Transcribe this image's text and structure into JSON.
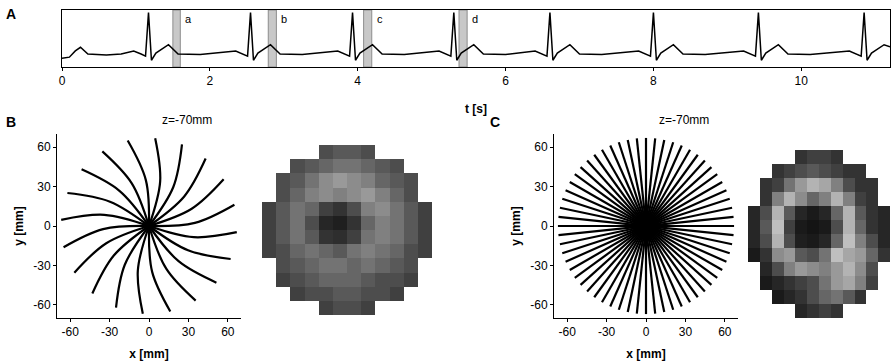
{
  "chart_data": [
    {
      "panel": "A",
      "type": "line",
      "color": "#000000",
      "tick_labels": "x",
      "x_label": "t [s]",
      "xlim": [
        0,
        11.2
      ],
      "xticks": [
        0,
        2,
        4,
        6,
        8,
        10
      ],
      "ylim": [
        -0.05,
        1.05
      ],
      "x": [
        0,
        0.1,
        0.18,
        0.25,
        0.35,
        0.6,
        0.8,
        0.97,
        1.07,
        1.13,
        1.17,
        1.21,
        1.27,
        1.44,
        1.57,
        1.87,
        2.35,
        2.45,
        2.51,
        2.55,
        2.59,
        2.65,
        2.82,
        2.95,
        3.25,
        3.73,
        3.83,
        3.89,
        3.93,
        3.97,
        4.03,
        4.2,
        4.33,
        4.63,
        5.1,
        5.2,
        5.26,
        5.3,
        5.34,
        5.4,
        5.57,
        5.7,
        6.0,
        6.4,
        6.5,
        6.56,
        6.6,
        6.64,
        6.7,
        6.87,
        7.0,
        7.3,
        7.8,
        7.9,
        7.96,
        8.0,
        8.04,
        8.1,
        8.27,
        8.4,
        8.7,
        9.22,
        9.32,
        9.38,
        9.42,
        9.46,
        9.52,
        9.69,
        9.82,
        10.12,
        10.65,
        10.75,
        10.81,
        10.85,
        10.89,
        10.95,
        11.12,
        11.2
      ],
      "values": [
        0.12,
        0.14,
        0.26,
        0.33,
        0.2,
        0.18,
        0.2,
        0.26,
        0.2,
        0.16,
        1.0,
        0.08,
        0.22,
        0.38,
        0.2,
        0.19,
        0.26,
        0.2,
        0.16,
        1.0,
        0.08,
        0.22,
        0.38,
        0.2,
        0.19,
        0.26,
        0.2,
        0.16,
        1.0,
        0.08,
        0.22,
        0.38,
        0.2,
        0.19,
        0.26,
        0.2,
        0.16,
        1.0,
        0.08,
        0.22,
        0.38,
        0.2,
        0.19,
        0.26,
        0.2,
        0.16,
        1.0,
        0.08,
        0.22,
        0.38,
        0.2,
        0.19,
        0.26,
        0.2,
        0.16,
        1.0,
        0.08,
        0.22,
        0.38,
        0.2,
        0.19,
        0.26,
        0.2,
        0.16,
        1.0,
        0.08,
        0.22,
        0.38,
        0.2,
        0.19,
        0.26,
        0.2,
        0.16,
        1.0,
        0.08,
        0.22,
        0.38,
        0.34
      ],
      "windows": [
        {
          "label": "a",
          "x0": 1.5,
          "x1": 1.6
        },
        {
          "label": "b",
          "x0": 2.79,
          "x1": 2.9
        },
        {
          "label": "c",
          "x0": 4.08,
          "x1": 4.19
        },
        {
          "label": "d",
          "x0": 5.37,
          "x1": 5.48
        }
      ]
    },
    {
      "panel": "B",
      "type": "line",
      "title": "z=-70mm",
      "color": "#000000",
      "line_style": "curved",
      "x_label": "x [mm]",
      "y_label": "y [mm]",
      "xlim": [
        -70,
        70
      ],
      "xticks": [
        -60,
        -30,
        0,
        30,
        60
      ],
      "ylim": [
        -70,
        70
      ],
      "yticks": [
        -60,
        -30,
        0,
        30,
        60
      ],
      "x": [
        0,
        34.9,
        65.0,
        null,
        0,
        32.5,
        56.8,
        null,
        0,
        26.8,
        43.1,
        null,
        0,
        18.5,
        25.1,
        null,
        0,
        8.5,
        4.7,
        null,
        0,
        -2.4,
        -16.2,
        null,
        0,
        -13.1,
        -35.5,
        null,
        0,
        -22.5,
        -51.3,
        null,
        0,
        -29.7,
        -62.1,
        null,
        0,
        -34,
        -66.8,
        null,
        0,
        -34.9,
        -65.0,
        null,
        0,
        -32.5,
        -56.8,
        null,
        0,
        -26.8,
        -43.1,
        null,
        0,
        -18.5,
        -25.1,
        null,
        0,
        -8.5,
        -4.7,
        null,
        0,
        2.4,
        16.2,
        null,
        0,
        13.1,
        35.5,
        null,
        0,
        22.5,
        51.3,
        null,
        0,
        29.7,
        62.1,
        null,
        0,
        34,
        66.8
      ],
      "y": [
        0,
        2.4,
        16.2,
        null,
        0,
        13.1,
        35.5,
        null,
        0,
        22.5,
        51.3,
        null,
        0,
        29.7,
        62.1,
        null,
        0,
        34,
        66.8,
        null,
        0,
        34.9,
        65.0,
        null,
        0,
        32.5,
        56.8,
        null,
        0,
        26.8,
        43.1,
        null,
        0,
        18.5,
        25.1,
        null,
        0,
        8.5,
        4.7,
        null,
        0,
        -2.4,
        -16.2,
        null,
        0,
        -13.1,
        -35.5,
        null,
        0,
        -22.5,
        -51.3,
        null,
        0,
        -29.7,
        -62.1,
        null,
        0,
        -34,
        -66.8,
        null,
        0,
        -34.9,
        -65.0,
        null,
        0,
        -32.5,
        -56.8,
        null,
        0,
        -26.8,
        -43.1,
        null,
        0,
        -18.5,
        -25.1,
        null,
        0,
        -8.5,
        -4.7
      ]
    },
    {
      "type": "heatmap",
      "tick_labels": false,
      "zlim": [
        0,
        1
      ],
      "cells": [
        [
          null,
          null,
          null,
          null,
          0.3,
          0.35,
          0.35,
          0.3,
          null,
          null,
          null,
          null
        ],
        [
          null,
          null,
          0.3,
          0.35,
          0.4,
          0.45,
          0.45,
          0.4,
          0.35,
          0.3,
          null,
          null
        ],
        [
          null,
          0.3,
          0.35,
          0.45,
          0.55,
          0.6,
          0.55,
          0.5,
          0.4,
          0.35,
          0.3,
          null
        ],
        [
          null,
          0.3,
          0.4,
          0.5,
          0.55,
          0.5,
          0.55,
          0.6,
          0.5,
          0.4,
          0.3,
          null
        ],
        [
          0.25,
          0.35,
          0.45,
          0.4,
          0.25,
          0.2,
          0.3,
          0.5,
          0.55,
          0.45,
          0.35,
          0.25
        ],
        [
          0.25,
          0.35,
          0.45,
          0.3,
          0.15,
          0.12,
          0.2,
          0.4,
          0.5,
          0.45,
          0.35,
          0.25
        ],
        [
          0.25,
          0.35,
          0.45,
          0.35,
          0.2,
          0.18,
          0.25,
          0.45,
          0.5,
          0.45,
          0.35,
          0.25
        ],
        [
          0.25,
          0.3,
          0.4,
          0.45,
          0.4,
          0.35,
          0.45,
          0.5,
          0.45,
          0.4,
          0.3,
          0.25
        ],
        [
          null,
          0.3,
          0.35,
          0.4,
          0.45,
          0.45,
          0.4,
          0.45,
          0.4,
          0.35,
          0.3,
          null
        ],
        [
          null,
          0.25,
          0.3,
          0.35,
          0.4,
          0.4,
          0.4,
          0.35,
          0.3,
          0.3,
          0.25,
          null
        ],
        [
          null,
          null,
          0.25,
          0.3,
          0.3,
          0.35,
          0.35,
          0.3,
          0.3,
          0.25,
          null,
          null
        ],
        [
          null,
          null,
          null,
          null,
          0.25,
          0.3,
          0.3,
          0.25,
          null,
          null,
          null,
          null
        ]
      ]
    },
    {
      "panel": "C",
      "type": "line",
      "title": "z=-70mm",
      "color": "#000000",
      "line_style": "straight",
      "x_label": "x [mm]",
      "y_label": "y [mm]",
      "xlim": [
        -70,
        70
      ],
      "xticks": [
        -60,
        -30,
        0,
        30,
        60
      ],
      "ylim": [
        -70,
        70
      ],
      "yticks": [
        -60,
        -30,
        0,
        30,
        60
      ],
      "x": [
        67,
        -67,
        null,
        66.6,
        -66.6,
        null,
        65.5,
        -65.5,
        null,
        63.7,
        -63.7,
        null,
        61.2,
        -61.2,
        null,
        58,
        -58,
        null,
        54.2,
        -54.2,
        null,
        49.8,
        -49.8,
        null,
        44.8,
        -44.8,
        null,
        39.4,
        -39.4,
        null,
        33.5,
        -33.5,
        null,
        27.2,
        -27.2,
        null,
        20.7,
        -20.7,
        null,
        13.9,
        -13.9,
        null,
        7,
        -7,
        null,
        0,
        0,
        null,
        -7,
        7,
        null,
        -13.9,
        13.9,
        null,
        -20.7,
        20.7,
        null,
        -27.2,
        27.2,
        null,
        -33.5,
        33.5,
        null,
        -39.4,
        39.4,
        null,
        -44.8,
        44.8,
        null,
        -49.8,
        49.8,
        null,
        -54.2,
        54.2,
        null,
        -58,
        58,
        null,
        -61.2,
        61.2,
        null,
        -63.7,
        63.7,
        null,
        -65.5,
        65.5,
        null,
        -66.6,
        66.6
      ],
      "y": [
        0,
        0,
        null,
        7,
        -7,
        null,
        13.9,
        -13.9,
        null,
        20.7,
        -20.7,
        null,
        27.2,
        -27.2,
        null,
        33.5,
        -33.5,
        null,
        39.4,
        -39.4,
        null,
        44.8,
        -44.8,
        null,
        49.8,
        -49.8,
        null,
        54.2,
        -54.2,
        null,
        58,
        -58,
        null,
        61.2,
        -61.2,
        null,
        63.7,
        -63.7,
        null,
        65.5,
        -65.5,
        null,
        66.6,
        -66.6,
        null,
        67,
        -67,
        null,
        66.6,
        -66.6,
        null,
        65.5,
        -65.5,
        null,
        63.7,
        -63.7,
        null,
        61.2,
        -61.2,
        null,
        58,
        -58,
        null,
        54.2,
        -54.2,
        null,
        49.8,
        -49.8,
        null,
        44.8,
        -44.8,
        null,
        39.4,
        -39.4,
        null,
        33.5,
        -33.5,
        null,
        27.2,
        -27.2,
        null,
        20.7,
        -20.7,
        null,
        13.9,
        -13.9,
        null,
        7,
        -7
      ]
    },
    {
      "type": "heatmap",
      "tick_labels": false,
      "zlim": [
        0,
        1
      ],
      "cells": [
        [
          null,
          null,
          null,
          null,
          0.2,
          0.25,
          0.25,
          0.2,
          null,
          null,
          null,
          null
        ],
        [
          null,
          null,
          0.2,
          0.25,
          0.3,
          0.35,
          0.3,
          0.25,
          0.2,
          0.2,
          null,
          null
        ],
        [
          null,
          0.2,
          0.25,
          0.45,
          0.6,
          0.7,
          0.65,
          0.5,
          0.3,
          0.2,
          0.2,
          null
        ],
        [
          null,
          0.2,
          0.5,
          0.7,
          0.55,
          0.4,
          0.5,
          0.7,
          0.5,
          0.25,
          0.2,
          null
        ],
        [
          0.15,
          0.3,
          0.7,
          0.35,
          0.15,
          0.1,
          0.15,
          0.4,
          0.7,
          0.35,
          0.2,
          0.15
        ],
        [
          0.15,
          0.35,
          0.75,
          0.25,
          0.1,
          0.08,
          0.1,
          0.3,
          0.7,
          0.4,
          0.2,
          0.15
        ],
        [
          0.15,
          0.3,
          0.7,
          0.3,
          0.12,
          0.1,
          0.15,
          0.4,
          0.75,
          0.5,
          0.3,
          0.15
        ],
        [
          0.1,
          0.2,
          0.55,
          0.6,
          0.35,
          0.3,
          0.45,
          0.75,
          0.65,
          0.6,
          0.4,
          0.2
        ],
        [
          null,
          0.15,
          0.3,
          0.5,
          0.6,
          0.55,
          0.5,
          0.6,
          0.7,
          0.55,
          0.3,
          null
        ],
        [
          null,
          0.1,
          0.15,
          0.2,
          0.25,
          0.3,
          0.45,
          0.6,
          0.65,
          0.5,
          0.25,
          null
        ],
        [
          null,
          null,
          0.1,
          0.15,
          0.2,
          0.3,
          0.4,
          0.45,
          0.35,
          0.2,
          null,
          null
        ],
        [
          null,
          null,
          null,
          null,
          0.15,
          0.2,
          0.25,
          0.2,
          null,
          null,
          null,
          null
        ]
      ]
    }
  ]
}
